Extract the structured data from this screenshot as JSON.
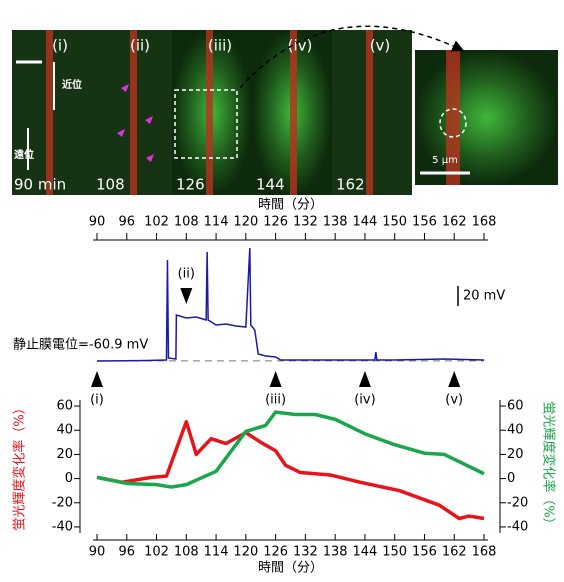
{
  "images": {
    "panels": [
      {
        "label": "(i)",
        "time": "90 min"
      },
      {
        "label": "(ii)",
        "time": "108"
      },
      {
        "label": "(iii)",
        "time": "126"
      },
      {
        "label": "(iv)",
        "time": "144"
      },
      {
        "label": "(v)",
        "time": "162"
      }
    ],
    "proximal": "近位",
    "distal": "遠位",
    "scale": "5 μm"
  },
  "chart_data": [
    {
      "type": "line",
      "x_label": "時間（分）",
      "xlim": [
        90,
        168
      ],
      "xticks": [
        90,
        96,
        102,
        108,
        114,
        120,
        126,
        132,
        138,
        144,
        150,
        156,
        162,
        168
      ],
      "ylim": [
        -70,
        60
      ],
      "series": [
        {
          "color": "#1a1aa6",
          "x": [
            90,
            100,
            104,
            104.2,
            104.4,
            105.9,
            106,
            108,
            110,
            112,
            112.2,
            112.4,
            114,
            116,
            118,
            120,
            120.8,
            121,
            121.8,
            122.5,
            124,
            126,
            127,
            130,
            140,
            146,
            146.2,
            146.4,
            150,
            160,
            168
          ],
          "values": [
            -61,
            -60.5,
            -60,
            40,
            -58,
            -59,
            -15,
            -18,
            -17,
            -20,
            48,
            -20,
            -25,
            -24,
            -26,
            -27,
            52,
            -25,
            -30,
            -54,
            -56,
            -57,
            -60,
            -60,
            -60,
            -60,
            -52,
            -60,
            -60,
            -59,
            -60
          ]
        }
      ],
      "resting_label": "静止膜電位=-60.9 mV",
      "resting_value": -60.9,
      "scale_bar_label": "20 mV",
      "scale_bar_value": 20,
      "markers": [
        {
          "label": "(i)",
          "x": 90
        },
        {
          "label": "(ii)",
          "x": 108
        },
        {
          "label": "(iii)",
          "x": 126
        },
        {
          "label": "(iv)",
          "x": 144
        },
        {
          "label": "(v)",
          "x": 162
        }
      ]
    },
    {
      "type": "line",
      "x_label": "時間（分）",
      "y_label": "蛍光輝度変化率（%）",
      "y2_label": "蛍光輝度変化率（%）",
      "xlim": [
        90,
        168
      ],
      "xticks": [
        90,
        96,
        102,
        108,
        114,
        120,
        126,
        132,
        138,
        144,
        150,
        156,
        162,
        168
      ],
      "ylim": [
        -45,
        65
      ],
      "yticks": [
        -40,
        -20,
        0,
        20,
        40,
        60
      ],
      "y2lim": [
        -45,
        65
      ],
      "y2ticks": [
        -40,
        -20,
        0,
        20,
        40,
        60
      ],
      "y_color": "#e8141b",
      "y2_color": "#1aa64a",
      "series": [
        {
          "color": "#e8141b",
          "x": [
            90,
            95,
            101,
            104,
            108,
            110,
            113,
            116,
            120,
            123,
            126,
            128,
            131,
            137,
            143,
            151,
            159,
            163,
            165,
            168
          ],
          "values": [
            1,
            -3,
            1,
            2,
            47,
            20,
            33,
            29,
            38,
            30,
            23,
            11,
            5,
            3,
            -3,
            -10,
            -22,
            -33,
            -31,
            -33
          ]
        },
        {
          "color": "#1aa64a",
          "axis": "y2",
          "x": [
            90,
            96,
            102,
            105,
            108,
            114,
            120,
            124,
            126,
            130,
            134,
            138,
            144,
            150,
            156,
            160,
            164,
            168
          ],
          "values": [
            1,
            -4,
            -5,
            -7,
            -5,
            6,
            39,
            44,
            55,
            53,
            53,
            49,
            37,
            28,
            21,
            20,
            12,
            4
          ]
        }
      ]
    }
  ]
}
